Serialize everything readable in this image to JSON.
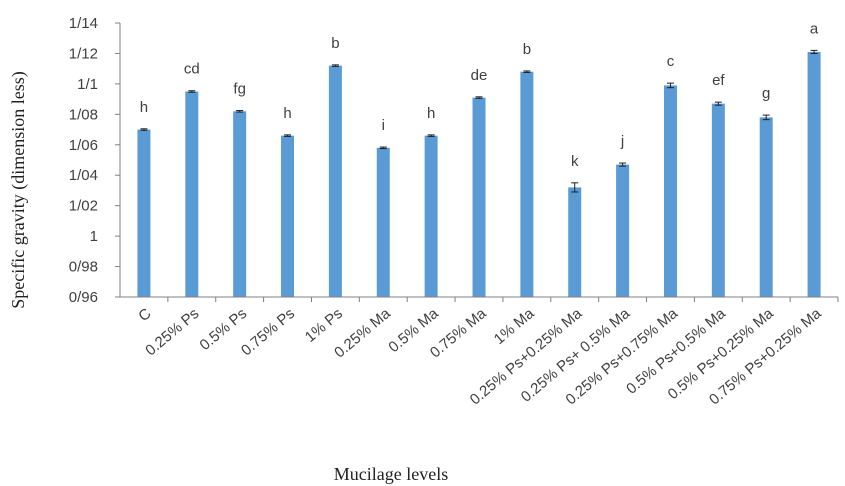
{
  "chart_data": {
    "type": "bar",
    "xlabel": "Mucilage levels",
    "ylabel": "Specific gravity (dimension less)",
    "ylim": [
      0.96,
      1.14
    ],
    "yticks": [
      0.96,
      0.98,
      1.0,
      1.02,
      1.04,
      1.06,
      1.08,
      1.1,
      1.12,
      1.14
    ],
    "ytick_labels": [
      "0/96",
      "0/98",
      "1",
      "1/02",
      "1/04",
      "1/06",
      "1/08",
      "1/1",
      "1/12",
      "1/14"
    ],
    "categories": [
      "C",
      "0.25% Ps",
      "0.5% Ps",
      "0.75% Ps",
      "1% Ps",
      "0.25% Ma",
      "0.5% Ma",
      "0.75% Ma",
      "1% Ma",
      "0.25% Ps+0.25% Ma",
      "0.25% Ps+ 0.5% Ma",
      "0.25% Ps+0.75% Ma",
      "0.5% Ps+0.5% Ma",
      "0.5% Ps+0.25% Ma",
      "0.75% Ps+0.25% Ma"
    ],
    "values": [
      1.07,
      1.095,
      1.082,
      1.066,
      1.112,
      1.058,
      1.066,
      1.091,
      1.108,
      1.032,
      1.047,
      1.099,
      1.087,
      1.078,
      1.121
    ],
    "errors": [
      0.0005,
      0.0005,
      0.0005,
      0.0005,
      0.0005,
      0.0005,
      0.0005,
      0.0005,
      0.0005,
      0.003,
      0.001,
      0.0015,
      0.001,
      0.0015,
      0.001
    ],
    "letters": [
      "h",
      "cd",
      "fg",
      "h",
      "b",
      "i",
      "h",
      "de",
      "b",
      "k",
      "j",
      "c",
      "ef",
      "g",
      "a"
    ],
    "bar_color": "#5b9bd5",
    "grid": false,
    "legend": "none"
  }
}
